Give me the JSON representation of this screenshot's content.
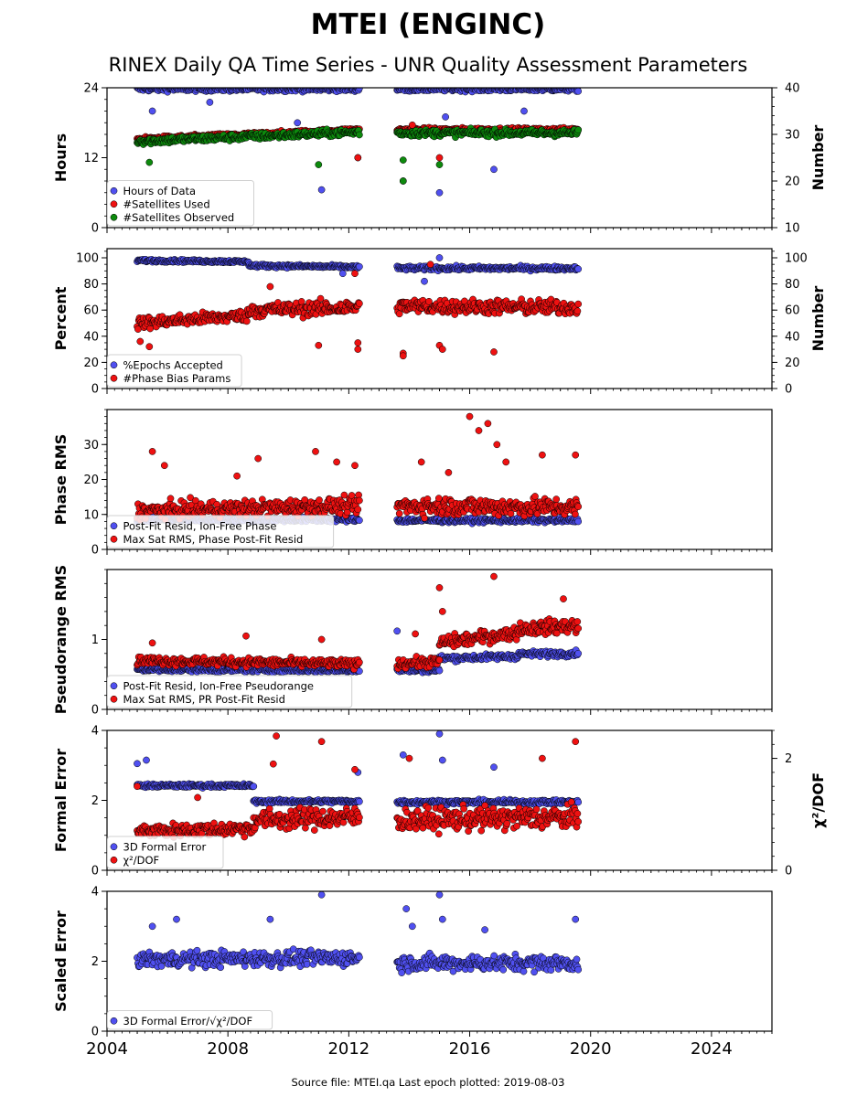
{
  "header": {
    "title": "MTEI (ENGINC)",
    "subtitle": "RINEX Daily QA Time Series - UNR Quality Assessment Parameters"
  },
  "footer": {
    "source": "Source file: MTEI.qa Last epoch plotted: 2019-08-03"
  },
  "colors": {
    "blue": "#5050f0",
    "red": "#ee1111",
    "green": "#0d8a0d",
    "edge": "#000000"
  },
  "x_axis": {
    "range": [
      2004,
      2026
    ],
    "ticks": [
      2004,
      2008,
      2012,
      2016,
      2020,
      2024
    ],
    "tick_labels": [
      "2004",
      "2008",
      "2012",
      "2016",
      "2020",
      "2024"
    ],
    "data_segments": [
      [
        2005.0,
        2012.35
      ],
      [
        2013.6,
        2019.59
      ]
    ]
  },
  "chart_data": [
    {
      "type": "scatter",
      "ylabel": "Hours",
      "ylim": [
        0,
        24
      ],
      "yticks": [
        0,
        12,
        24
      ],
      "ylabel_right": "Number",
      "ylim_right": [
        10,
        40
      ],
      "yticks_right": [
        10,
        20,
        30,
        40
      ],
      "legend_position": "lower-left",
      "series": [
        {
          "name": "Hours of Data",
          "color": "blue",
          "axis": "left",
          "segments": [
            {
              "x": [
                2005.0,
                2012.35
              ],
              "y": [
                23.8,
                23.8
              ],
              "noise": 0.4
            },
            {
              "x": [
                2013.6,
                2019.59
              ],
              "y": [
                23.8,
                23.8
              ],
              "noise": 0.4
            }
          ],
          "outliers": [
            [
              2011.1,
              6.5
            ],
            [
              2015.0,
              6.0
            ],
            [
              2013.8,
              8.0
            ],
            [
              2016.8,
              10.0
            ],
            [
              2012.3,
              12.0
            ],
            [
              2010.3,
              18.0
            ],
            [
              2015.2,
              19.0
            ],
            [
              2017.8,
              20.0
            ],
            [
              2007.4,
              21.5
            ],
            [
              2005.5,
              20.0
            ]
          ]
        },
        {
          "name": "#Satellites Used",
          "color": "red",
          "axis": "right",
          "segments": [
            {
              "x": [
                2005.0,
                2012.35
              ],
              "y": [
                29,
                31
              ],
              "noise": 0.4
            },
            {
              "x": [
                2013.6,
                2019.59
              ],
              "y": [
                31,
                31
              ],
              "noise": 0.4
            }
          ],
          "outliers": [
            [
              2012.3,
              25
            ],
            [
              2015.0,
              25
            ],
            [
              2014.1,
              32
            ]
          ]
        },
        {
          "name": "#Satellites Observed",
          "color": "green",
          "axis": "right",
          "segments": [
            {
              "x": [
                2005.0,
                2012.35
              ],
              "y": [
                28.5,
                30.5
              ],
              "noise": 0.7
            },
            {
              "x": [
                2013.6,
                2019.59
              ],
              "y": [
                30.3,
                30.3
              ],
              "noise": 0.7
            }
          ],
          "outliers": [
            [
              2005.4,
              24
            ],
            [
              2011.0,
              23.5
            ],
            [
              2013.8,
              24.5
            ],
            [
              2015.0,
              23.5
            ],
            [
              2013.8,
              20
            ]
          ]
        }
      ]
    },
    {
      "type": "scatter",
      "ylabel": "Percent",
      "ylim": [
        0,
        107
      ],
      "yticks": [
        0,
        20,
        40,
        60,
        80,
        100
      ],
      "ylabel_right": "Number",
      "ylim_right": [
        0,
        107
      ],
      "yticks_right": [
        0,
        20,
        40,
        60,
        80,
        100
      ],
      "legend_position": "lower-left",
      "series": [
        {
          "name": "%Epochs Accepted",
          "color": "blue",
          "axis": "left",
          "segments": [
            {
              "x": [
                2005.0,
                2008.7
              ],
              "y": [
                98,
                97
              ],
              "noise": 1.0
            },
            {
              "x": [
                2008.7,
                2012.35
              ],
              "y": [
                94,
                93
              ],
              "noise": 1.2
            },
            {
              "x": [
                2013.6,
                2019.59
              ],
              "y": [
                92,
                92
              ],
              "noise": 1.5
            }
          ],
          "outliers": [
            [
              2014.5,
              82
            ],
            [
              2015.0,
              100
            ],
            [
              2011.8,
              88
            ]
          ]
        },
        {
          "name": "#Phase Bias Params",
          "color": "red",
          "axis": "right",
          "segments": [
            {
              "x": [
                2005.0,
                2008.7
              ],
              "y": [
                50,
                56
              ],
              "noise": 4.5
            },
            {
              "x": [
                2008.7,
                2012.35
              ],
              "y": [
                60,
                62
              ],
              "noise": 5.5
            },
            {
              "x": [
                2013.6,
                2019.59
              ],
              "y": [
                63,
                62
              ],
              "noise": 5.5
            }
          ],
          "outliers": [
            [
              2005.1,
              36
            ],
            [
              2005.4,
              32
            ],
            [
              2011.0,
              33
            ],
            [
              2012.3,
              35
            ],
            [
              2012.3,
              30
            ],
            [
              2013.8,
              27
            ],
            [
              2013.8,
              25
            ],
            [
              2015.0,
              33
            ],
            [
              2015.1,
              30
            ],
            [
              2016.8,
              28
            ],
            [
              2014.7,
              95
            ],
            [
              2012.2,
              88
            ],
            [
              2009.4,
              78
            ]
          ]
        }
      ]
    },
    {
      "type": "scatter",
      "ylabel": "Phase RMS",
      "ylim": [
        0,
        40
      ],
      "yticks": [
        0,
        10,
        20,
        30
      ],
      "legend_position": "lower-left",
      "series": [
        {
          "name": "Post-Fit Resid, Ion-Free Phase",
          "color": "blue",
          "axis": "left",
          "segments": [
            {
              "x": [
                2005.0,
                2012.35
              ],
              "y": [
                8.5,
                8.5
              ],
              "noise": 0.6
            },
            {
              "x": [
                2013.6,
                2019.59
              ],
              "y": [
                8.3,
                8.3
              ],
              "noise": 0.6
            }
          ],
          "outliers": []
        },
        {
          "name": "Max Sat RMS, Phase Post-Fit Resid",
          "color": "red",
          "axis": "left",
          "segments": [
            {
              "x": [
                2005.0,
                2012.35
              ],
              "y": [
                11,
                12.5
              ],
              "noise": 2.3
            },
            {
              "x": [
                2013.6,
                2019.59
              ],
              "y": [
                12.5,
                12.0
              ],
              "noise": 2.6
            }
          ],
          "outliers": [
            [
              2005.5,
              28
            ],
            [
              2005.9,
              24
            ],
            [
              2008.3,
              21
            ],
            [
              2009.0,
              26
            ],
            [
              2010.9,
              28
            ],
            [
              2011.6,
              25
            ],
            [
              2012.2,
              24
            ],
            [
              2014.4,
              25
            ],
            [
              2015.3,
              22
            ],
            [
              2016.0,
              38
            ],
            [
              2016.3,
              34
            ],
            [
              2016.6,
              36
            ],
            [
              2016.9,
              30
            ],
            [
              2017.2,
              25
            ],
            [
              2018.4,
              27
            ],
            [
              2019.5,
              27
            ]
          ]
        }
      ]
    },
    {
      "type": "scatter",
      "ylabel": "Pseudorange RMS",
      "ylim": [
        0,
        2.0
      ],
      "yticks": [
        0,
        1
      ],
      "legend_position": "lower-left",
      "series": [
        {
          "name": "Post-Fit Resid, Ion-Free Pseudorange",
          "color": "blue",
          "axis": "left",
          "segments": [
            {
              "x": [
                2005.0,
                2012.35
              ],
              "y": [
                0.57,
                0.56
              ],
              "noise": 0.03
            },
            {
              "x": [
                2013.6,
                2015.0
              ],
              "y": [
                0.56,
                0.56
              ],
              "noise": 0.03
            },
            {
              "x": [
                2015.0,
                2017.6
              ],
              "y": [
                0.73,
                0.76
              ],
              "noise": 0.04
            },
            {
              "x": [
                2017.6,
                2019.59
              ],
              "y": [
                0.79,
                0.8
              ],
              "noise": 0.04
            }
          ],
          "outliers": [
            [
              2013.6,
              1.12
            ]
          ]
        },
        {
          "name": "Max Sat RMS, PR Post-Fit Resid",
          "color": "red",
          "axis": "left",
          "segments": [
            {
              "x": [
                2005.0,
                2012.35
              ],
              "y": [
                0.7,
                0.65
              ],
              "noise": 0.06
            },
            {
              "x": [
                2013.6,
                2015.0
              ],
              "y": [
                0.66,
                0.68
              ],
              "noise": 0.07
            },
            {
              "x": [
                2015.0,
                2017.6
              ],
              "y": [
                0.95,
                1.1
              ],
              "noise": 0.09
            },
            {
              "x": [
                2017.6,
                2019.59
              ],
              "y": [
                1.15,
                1.2
              ],
              "noise": 0.1
            }
          ],
          "outliers": [
            [
              2015.0,
              1.74
            ],
            [
              2016.8,
              1.9
            ],
            [
              2019.1,
              1.58
            ],
            [
              2015.1,
              1.4
            ],
            [
              2008.6,
              1.05
            ],
            [
              2011.1,
              1.0
            ],
            [
              2005.5,
              0.95
            ],
            [
              2014.2,
              1.08
            ]
          ]
        }
      ]
    },
    {
      "type": "scatter",
      "ylabel": "Formal Error",
      "ylim": [
        0,
        4
      ],
      "yticks": [
        0,
        2,
        4
      ],
      "ylabel_right": "χ²/DOF",
      "ylim_right": [
        0,
        2.5
      ],
      "yticks_right": [
        0,
        2
      ],
      "legend_position": "lower-left",
      "series": [
        {
          "name": "3D Formal Error",
          "color": "blue",
          "axis": "left",
          "segments": [
            {
              "x": [
                2005.0,
                2008.85
              ],
              "y": [
                2.42,
                2.42
              ],
              "noise": 0.05
            },
            {
              "x": [
                2008.85,
                2012.35
              ],
              "y": [
                1.97,
                1.97
              ],
              "noise": 0.05
            },
            {
              "x": [
                2013.6,
                2019.59
              ],
              "y": [
                1.95,
                1.95
              ],
              "noise": 0.06
            }
          ],
          "outliers": [
            [
              2005.3,
              3.15
            ],
            [
              2005.0,
              3.05
            ],
            [
              2013.8,
              3.3
            ],
            [
              2015.0,
              3.9
            ],
            [
              2015.1,
              3.15
            ],
            [
              2016.8,
              2.95
            ],
            [
              2012.3,
              2.8
            ]
          ]
        },
        {
          "name": "χ²/DOF",
          "color": "red",
          "axis": "right",
          "segments": [
            {
              "x": [
                2005.0,
                2008.85
              ],
              "y": [
                0.7,
                0.75
              ],
              "noise": 0.12
            },
            {
              "x": [
                2008.85,
                2012.35
              ],
              "y": [
                0.9,
                0.95
              ],
              "noise": 0.18
            },
            {
              "x": [
                2013.6,
                2019.59
              ],
              "y": [
                0.9,
                0.95
              ],
              "noise": 0.2
            }
          ],
          "outliers": [
            [
              2009.6,
              2.4
            ],
            [
              2011.1,
              2.3
            ],
            [
              2019.5,
              2.3
            ],
            [
              2009.5,
              1.9
            ],
            [
              2012.2,
              1.8
            ],
            [
              2014.0,
              2.0
            ],
            [
              2018.4,
              2.0
            ],
            [
              2005.0,
              1.5
            ],
            [
              2007.0,
              1.3
            ]
          ]
        }
      ]
    },
    {
      "type": "scatter",
      "ylabel": "Scaled Error",
      "ylim": [
        0,
        4
      ],
      "yticks": [
        0,
        2,
        4
      ],
      "legend_position": "lower-left",
      "series": [
        {
          "name": "3D Formal Error/√χ²/DOF",
          "color": "blue",
          "axis": "left",
          "segments": [
            {
              "x": [
                2005.0,
                2012.35
              ],
              "y": [
                2.05,
                2.1
              ],
              "noise": 0.22
            },
            {
              "x": [
                2013.6,
                2019.59
              ],
              "y": [
                1.95,
                1.95
              ],
              "noise": 0.22
            }
          ],
          "outliers": [
            [
              2011.1,
              3.9
            ],
            [
              2015.0,
              3.9
            ],
            [
              2013.9,
              3.5
            ],
            [
              2006.3,
              3.2
            ],
            [
              2009.4,
              3.2
            ],
            [
              2015.1,
              3.2
            ],
            [
              2019.5,
              3.2
            ],
            [
              2005.5,
              3.0
            ],
            [
              2014.1,
              3.0
            ],
            [
              2016.5,
              2.9
            ]
          ]
        }
      ]
    }
  ]
}
